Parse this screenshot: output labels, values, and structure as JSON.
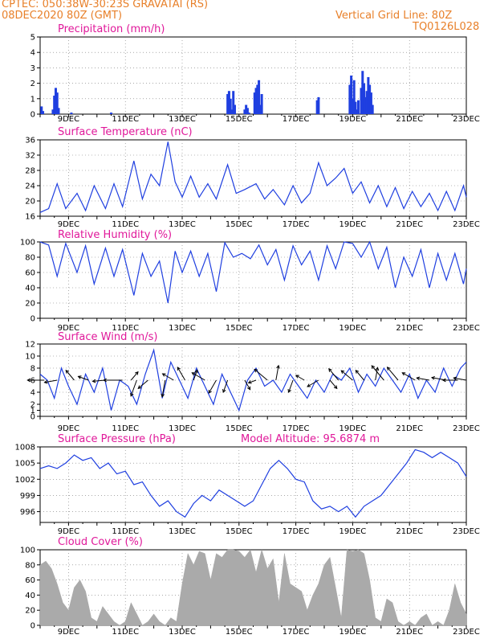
{
  "header": {
    "line1": "CPTEC:   050:38W-30:23S   GRAVATAI (RS)",
    "line2": "08DEC2020 80Z (GMT)",
    "grid_note": "Vertical Grid Line: 80Z",
    "code": "TQ0126L028"
  },
  "colors": {
    "header": "#e8802a",
    "title": "#e0189a",
    "line": "#1f3fe0",
    "bar": "#1f3fe0",
    "cloud": "#aaaaaa",
    "arrow": "#000000"
  },
  "x_ticks": [
    "9DEC",
    "11DEC",
    "13DEC",
    "15DEC",
    "17DEC",
    "19DEC",
    "21DEC",
    "23DEC"
  ],
  "x_tick_days": [
    9,
    11,
    13,
    15,
    17,
    19,
    21,
    23
  ],
  "x_range_days": [
    8.0,
    23.0
  ],
  "chart_data": [
    {
      "id": "precip",
      "type": "bar",
      "title": "Precipitation (mm/h)",
      "ylim": [
        0,
        5
      ],
      "yticks": [
        0,
        1,
        2,
        3,
        4,
        5
      ],
      "series": [
        {
          "x": [
            8.05,
            8.1,
            8.45,
            8.5,
            8.55,
            8.6,
            8.65,
            9.1,
            10.5,
            14.6,
            14.65,
            14.7,
            14.75,
            14.8,
            14.85,
            15.2,
            15.25,
            15.3,
            15.35,
            15.55,
            15.6,
            15.65,
            15.7,
            15.75,
            15.8,
            17.75,
            17.8,
            18.9,
            18.95,
            19.0,
            19.05,
            19.1,
            19.15,
            19.2,
            19.3,
            19.35,
            19.4,
            19.45,
            19.5,
            19.55,
            19.6,
            19.65,
            19.7
          ],
          "values": [
            0.5,
            0.2,
            0.3,
            1.2,
            1.7,
            1.4,
            0.4,
            0.1,
            0.1,
            1.3,
            1.5,
            1.0,
            0.3,
            1.5,
            0.6,
            0.3,
            0.6,
            0.4,
            0.1,
            1.4,
            1.7,
            1.9,
            2.2,
            0.6,
            1.3,
            0.9,
            1.1,
            1.9,
            2.5,
            1.0,
            2.2,
            0.8,
            0.3,
            0.9,
            1.7,
            2.8,
            2.0,
            1.1,
            1.5,
            2.4,
            1.9,
            1.4,
            0.6
          ]
        }
      ]
    },
    {
      "id": "temp",
      "type": "line",
      "title": "Surface Temperature (nC)",
      "ylim": [
        16,
        36
      ],
      "yticks": [
        16,
        20,
        24,
        28,
        32,
        36
      ],
      "series": [
        {
          "x": [
            8.0,
            8.3,
            8.6,
            8.9,
            9.3,
            9.6,
            9.9,
            10.3,
            10.6,
            10.9,
            11.3,
            11.6,
            11.9,
            12.2,
            12.5,
            12.75,
            13.0,
            13.3,
            13.6,
            13.9,
            14.2,
            14.6,
            14.9,
            15.2,
            15.6,
            15.9,
            16.2,
            16.6,
            16.9,
            17.2,
            17.5,
            17.8,
            18.1,
            18.4,
            18.7,
            19.0,
            19.3,
            19.6,
            19.9,
            20.2,
            20.5,
            20.8,
            21.1,
            21.4,
            21.7,
            22.0,
            22.3,
            22.6,
            22.9,
            23.0
          ],
          "values": [
            17,
            18,
            24.5,
            18,
            22,
            17.5,
            24,
            18,
            24.5,
            18.5,
            30.5,
            20.5,
            27,
            24,
            35.5,
            25,
            21,
            26.5,
            21,
            24.5,
            20.5,
            29.5,
            22,
            23,
            24.5,
            20.5,
            23,
            19,
            24,
            19.5,
            22,
            30,
            24,
            26,
            28.5,
            22,
            25,
            19.5,
            24,
            18.5,
            23.5,
            18,
            22.5,
            18.5,
            22,
            17.5,
            22.5,
            17.5,
            24,
            21
          ]
        }
      ]
    },
    {
      "id": "rh",
      "type": "line",
      "title": "Relative Humidity (%)",
      "ylim": [
        0,
        100
      ],
      "yticks": [
        0,
        20,
        40,
        60,
        80,
        100
      ],
      "series": [
        {
          "x": [
            8.0,
            8.3,
            8.6,
            8.9,
            9.3,
            9.6,
            9.9,
            10.3,
            10.6,
            10.9,
            11.3,
            11.6,
            11.9,
            12.2,
            12.5,
            12.75,
            13.0,
            13.3,
            13.6,
            13.9,
            14.2,
            14.5,
            14.8,
            15.1,
            15.4,
            15.7,
            16.0,
            16.3,
            16.6,
            16.9,
            17.2,
            17.5,
            17.8,
            18.1,
            18.4,
            18.7,
            19.0,
            19.3,
            19.6,
            19.9,
            20.2,
            20.5,
            20.8,
            21.1,
            21.4,
            21.7,
            22.0,
            22.3,
            22.6,
            22.9,
            23.0
          ],
          "values": [
            100,
            96,
            55,
            98,
            60,
            95,
            45,
            92,
            55,
            90,
            30,
            85,
            55,
            75,
            20,
            88,
            60,
            88,
            55,
            85,
            35,
            99,
            80,
            85,
            78,
            96,
            70,
            90,
            50,
            95,
            70,
            88,
            50,
            95,
            65,
            100,
            98,
            80,
            100,
            65,
            93,
            40,
            80,
            55,
            90,
            40,
            85,
            50,
            85,
            45,
            65
          ]
        }
      ]
    },
    {
      "id": "wind",
      "type": "line",
      "title": "Surface Wind (m/s)",
      "ylim": [
        0,
        12
      ],
      "yticks": [
        0,
        1,
        2,
        4,
        6,
        8,
        10,
        12
      ],
      "series": [
        {
          "x": [
            8.0,
            8.25,
            8.5,
            8.75,
            9.0,
            9.3,
            9.6,
            9.9,
            10.2,
            10.5,
            10.8,
            11.1,
            11.4,
            11.7,
            12.0,
            12.3,
            12.6,
            12.9,
            13.2,
            13.5,
            13.8,
            14.1,
            14.4,
            14.7,
            15.0,
            15.3,
            15.6,
            15.9,
            16.2,
            16.5,
            16.8,
            17.1,
            17.4,
            17.7,
            18.0,
            18.3,
            18.6,
            18.9,
            19.2,
            19.5,
            19.8,
            20.1,
            20.4,
            20.7,
            21.0,
            21.3,
            21.6,
            21.9,
            22.2,
            22.5,
            22.8,
            23.0
          ],
          "values": [
            7,
            6,
            3,
            8,
            5,
            2,
            7,
            4,
            8,
            1,
            6,
            5,
            2,
            7,
            11,
            3,
            9,
            6,
            3,
            8,
            5,
            2,
            7,
            4,
            1,
            6,
            8,
            5,
            6,
            4,
            7,
            5,
            3,
            6,
            4,
            7,
            6,
            8,
            4,
            7,
            5,
            8,
            6,
            4,
            7,
            3,
            6,
            4,
            8,
            5,
            8,
            9
          ]
        }
      ],
      "wind_arrows": [
        {
          "x": 8.15,
          "ws": 3,
          "dir": 270
        },
        {
          "x": 8.6,
          "ws": 2,
          "dir": 260
        },
        {
          "x": 9.2,
          "ws": 2,
          "dir": 320
        },
        {
          "x": 9.7,
          "ws": 1.5,
          "dir": 290
        },
        {
          "x": 10.3,
          "ws": 2,
          "dir": 265
        },
        {
          "x": 10.9,
          "ws": 3.5,
          "dir": 270
        },
        {
          "x": 11.2,
          "ws": 1.5,
          "dir": 40
        },
        {
          "x": 11.4,
          "ws": 3,
          "dir": 200
        },
        {
          "x": 11.8,
          "ws": 2,
          "dir": 230
        },
        {
          "x": 12.4,
          "ws": 3,
          "dir": 190
        },
        {
          "x": 12.7,
          "ws": 2,
          "dir": 300
        },
        {
          "x": 13.1,
          "ws": 2.5,
          "dir": 330
        },
        {
          "x": 13.4,
          "ws": 1.5,
          "dir": 20
        },
        {
          "x": 13.8,
          "ws": 2.5,
          "dir": 300
        },
        {
          "x": 14.2,
          "ws": 2.5,
          "dir": 210
        },
        {
          "x": 14.6,
          "ws": 2,
          "dir": 200
        },
        {
          "x": 15.2,
          "ws": 1.5,
          "dir": 150
        },
        {
          "x": 15.6,
          "ws": 0.8,
          "dir": 250
        },
        {
          "x": 16.0,
          "ws": 3,
          "dir": 310
        },
        {
          "x": 16.3,
          "ws": 2.5,
          "dir": 10
        },
        {
          "x": 16.9,
          "ws": 2,
          "dir": 200
        },
        {
          "x": 17.3,
          "ws": 1.2,
          "dir": 300
        },
        {
          "x": 17.8,
          "ws": 2,
          "dir": 240
        },
        {
          "x": 18.2,
          "ws": 1.5,
          "dir": 140
        },
        {
          "x": 18.5,
          "ws": 2.5,
          "dir": 320
        },
        {
          "x": 19.0,
          "ws": 2.5,
          "dir": 310
        },
        {
          "x": 19.4,
          "ws": 2,
          "dir": 320
        },
        {
          "x": 19.8,
          "ws": 2,
          "dir": 10
        },
        {
          "x": 20.1,
          "ws": 3.5,
          "dir": 320
        },
        {
          "x": 20.6,
          "ws": 3,
          "dir": 320
        },
        {
          "x": 21.2,
          "ws": 2.5,
          "dir": 300
        },
        {
          "x": 21.7,
          "ws": 2,
          "dir": 280
        },
        {
          "x": 22.3,
          "ws": 2.5,
          "dir": 280
        },
        {
          "x": 22.7,
          "ws": 2.5,
          "dir": 270
        },
        {
          "x": 23.0,
          "ws": 2,
          "dir": 280
        }
      ]
    },
    {
      "id": "pres",
      "type": "line",
      "title": "Surface Pressure (hPa)",
      "note": "Model Altitude: 95.6874 m",
      "ylim": [
        994,
        1008
      ],
      "yticks": [
        996,
        999,
        1002,
        1005,
        1008
      ],
      "series": [
        {
          "x": [
            8.0,
            8.3,
            8.6,
            8.9,
            9.2,
            9.5,
            9.8,
            10.1,
            10.4,
            10.7,
            11.0,
            11.3,
            11.6,
            11.9,
            12.2,
            12.5,
            12.8,
            13.1,
            13.4,
            13.7,
            14.0,
            14.3,
            14.6,
            14.9,
            15.2,
            15.5,
            15.8,
            16.1,
            16.4,
            16.7,
            17.0,
            17.3,
            17.6,
            17.9,
            18.2,
            18.5,
            18.8,
            19.1,
            19.4,
            19.7,
            20.0,
            20.3,
            20.6,
            20.9,
            21.2,
            21.5,
            21.8,
            22.1,
            22.4,
            22.7,
            23.0
          ],
          "values": [
            1004,
            1004.5,
            1004,
            1005,
            1006.5,
            1005.5,
            1006,
            1004,
            1005,
            1003,
            1003.5,
            1001,
            1001.5,
            999,
            997,
            998,
            996,
            995,
            997.5,
            999,
            998,
            1000,
            999,
            998,
            997,
            998,
            1001,
            1004,
            1005.5,
            1004,
            1002,
            1001.5,
            998,
            996.5,
            997,
            996,
            997,
            995,
            997,
            998,
            999,
            1001,
            1003,
            1005,
            1007.5,
            1007,
            1006,
            1007,
            1006,
            1005,
            1002.5
          ]
        }
      ]
    },
    {
      "id": "cloud",
      "type": "area",
      "title": "Cloud Cover (%)",
      "ylim": [
        0,
        100
      ],
      "yticks": [
        0,
        20,
        40,
        60,
        80,
        100
      ],
      "series": [
        {
          "x": [
            8.0,
            8.2,
            8.4,
            8.6,
            8.8,
            9.0,
            9.2,
            9.4,
            9.6,
            9.8,
            10.0,
            10.2,
            10.4,
            10.6,
            10.8,
            11.0,
            11.2,
            11.4,
            11.6,
            11.8,
            12.0,
            12.2,
            12.4,
            12.6,
            12.8,
            13.0,
            13.2,
            13.4,
            13.6,
            13.8,
            14.0,
            14.2,
            14.4,
            14.6,
            14.8,
            15.0,
            15.2,
            15.4,
            15.6,
            15.8,
            16.0,
            16.2,
            16.4,
            16.6,
            16.8,
            17.0,
            17.2,
            17.4,
            17.6,
            17.8,
            18.0,
            18.2,
            18.4,
            18.6,
            18.8,
            19.0,
            19.2,
            19.4,
            19.6,
            19.8,
            20.0,
            20.2,
            20.4,
            20.6,
            20.8,
            21.0,
            21.2,
            21.4,
            21.6,
            21.8,
            22.0,
            22.2,
            22.4,
            22.6,
            22.8,
            23.0
          ],
          "values": [
            80,
            85,
            75,
            55,
            30,
            20,
            50,
            60,
            45,
            10,
            5,
            25,
            15,
            5,
            0,
            5,
            30,
            15,
            0,
            5,
            15,
            5,
            0,
            10,
            5,
            55,
            95,
            80,
            98,
            95,
            60,
            95,
            90,
            100,
            100,
            98,
            90,
            100,
            70,
            100,
            75,
            88,
            30,
            95,
            55,
            50,
            45,
            20,
            40,
            55,
            80,
            90,
            50,
            10,
            100,
            98,
            100,
            95,
            60,
            10,
            5,
            35,
            30,
            5,
            0,
            5,
            0,
            10,
            15,
            0,
            5,
            0,
            20,
            55,
            30,
            15
          ]
        }
      ]
    }
  ]
}
